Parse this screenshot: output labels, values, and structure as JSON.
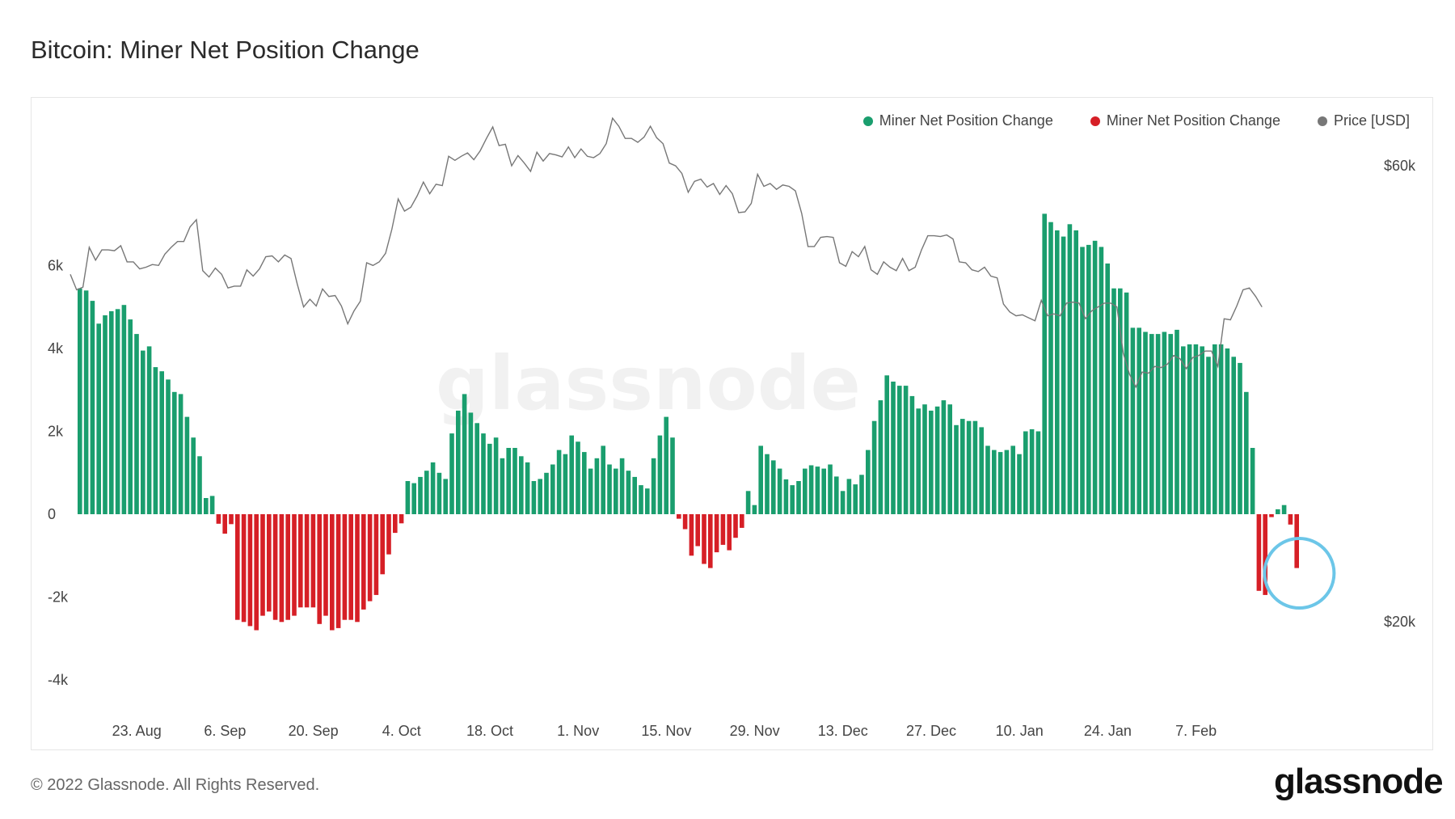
{
  "title": "Bitcoin: Miner Net Position Change",
  "copyright": "© 2022 Glassnode. All Rights Reserved.",
  "brand": "glassnode",
  "watermark": "glassnode",
  "colors": {
    "positive": "#1a9e6e",
    "negative": "#d61f26",
    "price": "#777777",
    "highlight": "#6cc6e8"
  },
  "legend": [
    {
      "label": "Miner Net Position Change",
      "color": "#1a9e6e"
    },
    {
      "label": "Miner Net Position Change",
      "color": "#d61f26"
    },
    {
      "label": "Price [USD]",
      "color": "#777777"
    }
  ],
  "chart_data": {
    "type": "bar",
    "title": "Bitcoin: Miner Net Position Change",
    "xlabel": "",
    "ylabel": "",
    "x_start": "2021-08-14",
    "x_ticks": [
      "23. Aug",
      "6. Sep",
      "20. Sep",
      "4. Oct",
      "18. Oct",
      "1. Nov",
      "15. Nov",
      "29. Nov",
      "13. Dec",
      "27. Dec",
      "10. Jan",
      "24. Jan",
      "7. Feb"
    ],
    "ylim_left": [
      -4000,
      8000
    ],
    "y_ticks_left": [
      "6k",
      "4k",
      "2k",
      "0",
      "-2k",
      "-4k"
    ],
    "ylim_right_log": [
      20000,
      70000
    ],
    "y_ticks_right": [
      "$60k",
      "$20k"
    ],
    "grid": false,
    "legend_position": "top-right",
    "series": [
      {
        "name": "Miner Net Position Change",
        "values": [
          5450,
          5400,
          5150,
          4600,
          4800,
          4900,
          4950,
          5050,
          4700,
          4350,
          3950,
          4050,
          3550,
          3450,
          3250,
          2950,
          2900,
          2350,
          1850,
          1400,
          390,
          440,
          -230,
          -470,
          -240,
          -2550,
          -2600,
          -2700,
          -2800,
          -2450,
          -2350,
          -2550,
          -2600,
          -2550,
          -2450,
          -2250,
          -2250,
          -2250,
          -2650,
          -2450,
          -2800,
          -2750,
          -2550,
          -2550,
          -2600,
          -2300,
          -2100,
          -1950,
          -1450,
          -970,
          -450,
          -220,
          800,
          750,
          900,
          1050,
          1250,
          1000,
          850,
          1950,
          2500,
          2900,
          2450,
          2200,
          1950,
          1700,
          1850,
          1350,
          1600,
          1600,
          1400,
          1250,
          800,
          850,
          1000,
          1200,
          1550,
          1450,
          1900,
          1750,
          1500,
          1100,
          1350,
          1650,
          1200,
          1100,
          1350,
          1050,
          900,
          700,
          620,
          1350,
          1900,
          2350,
          1850,
          -110,
          -360,
          -1000,
          -770,
          -1200,
          -1300,
          -920,
          -740,
          -870,
          -570,
          -330,
          560,
          220,
          1650,
          1450,
          1300,
          1100,
          840,
          700,
          800,
          1100,
          1180,
          1150,
          1100,
          1200,
          910,
          560,
          850,
          720,
          950,
          1550,
          2250,
          2750,
          3350,
          3200,
          3100,
          3100,
          2850,
          2550,
          2650,
          2500,
          2600,
          2750,
          2650,
          2150,
          2300,
          2250,
          2250,
          2100,
          1650,
          1550,
          1500,
          1550,
          1650,
          1450,
          2000,
          2050,
          2000,
          7250,
          7050,
          6850,
          6700,
          7000,
          6850,
          6450,
          6500,
          6600,
          6450,
          6050,
          5450,
          5450,
          5350,
          4500,
          4500,
          4400,
          4350,
          4350,
          4400,
          4350,
          4450,
          4050,
          4100,
          4100,
          4050,
          3800,
          4100,
          4100,
          4000,
          3800,
          3650,
          2950,
          1600,
          -1850,
          -1950,
          -70,
          120,
          220,
          -250,
          -1300
        ]
      },
      {
        "name": "Price [USD]",
        "values": [
          46200,
          44500,
          44800,
          49300,
          47800,
          49000,
          49000,
          48900,
          49500,
          47600,
          47600,
          46800,
          47000,
          47300,
          47200,
          48500,
          49300,
          50000,
          50000,
          51800,
          52700,
          46600,
          45900,
          46900,
          46200,
          44700,
          44900,
          44900,
          46700,
          46000,
          46800,
          48200,
          48300,
          47600,
          48400,
          48000,
          45100,
          42700,
          43500,
          42800,
          44600,
          43800,
          43900,
          42800,
          41000,
          42300,
          43300,
          47500,
          47200,
          47600,
          48600,
          51500,
          55400,
          53800,
          54300,
          55800,
          57700,
          56100,
          57400,
          57200,
          61400,
          60800,
          61400,
          61900,
          60900,
          62200,
          64100,
          65900,
          63000,
          63200,
          60000,
          61500,
          60400,
          59200,
          62000,
          60700,
          61800,
          61600,
          61300,
          62800,
          61200,
          62500,
          61400,
          61200,
          61800,
          63300,
          67300,
          66000,
          64100,
          64100,
          63500,
          64300,
          66000,
          64200,
          63300,
          60400,
          60000,
          58900,
          56300,
          57800,
          58100,
          57000,
          57500,
          56000,
          57200,
          56100,
          53600,
          53700,
          54800,
          58800,
          57100,
          57500,
          56700,
          57300,
          57100,
          56500,
          53500,
          49400,
          49400,
          50500,
          50600,
          50500,
          47500,
          47100,
          48800,
          48200,
          49400,
          46700,
          46200,
          47600,
          47000,
          46600,
          48000,
          46600,
          47000,
          49000,
          50700,
          50700,
          50600,
          50800,
          50300,
          47600,
          47500,
          46700,
          46500,
          47000,
          46000,
          45800,
          43000,
          42200,
          41800,
          41900,
          41600,
          41300,
          43400,
          41800,
          42000,
          41800,
          43100,
          43200,
          43100,
          41500,
          42300,
          42700,
          43100,
          43100,
          42700,
          38200,
          36300,
          35200,
          36500,
          36400,
          37000,
          36900,
          37200,
          38000,
          37700,
          36800,
          37800,
          38000,
          38400,
          38400,
          37000,
          41500,
          41400,
          42800,
          44500,
          44700,
          43800,
          42700
        ]
      }
    ]
  }
}
